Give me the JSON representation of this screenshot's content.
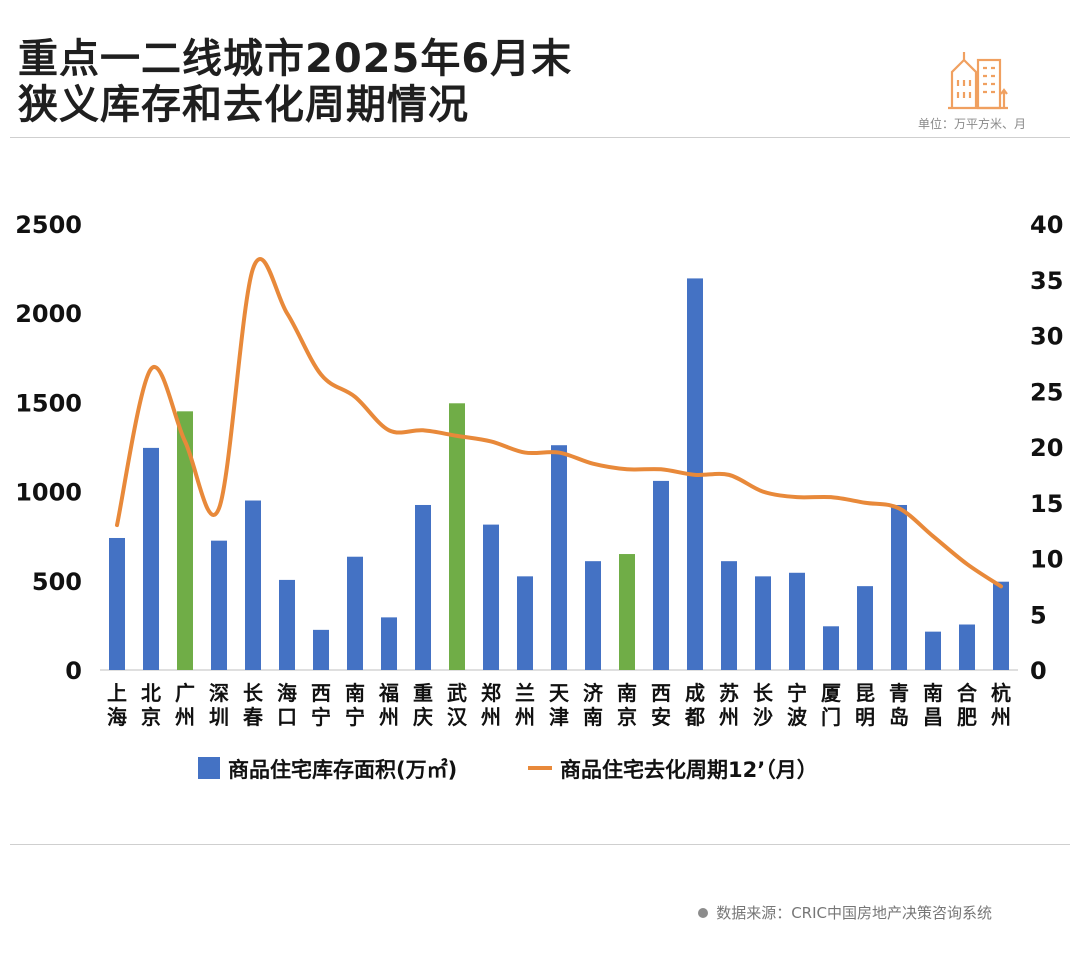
{
  "header": {
    "title_line1": "重点一二线城市2025年6月末",
    "title_line2": "狭义库存和去化周期情况",
    "unit_note": "单位：万平方米、月"
  },
  "footer": {
    "source": "数据来源：CRIC中国房地产决策咨询系统"
  },
  "colors": {
    "bar": "#4472C4",
    "bar_highlight": "#70AD47",
    "line": "#E8893A",
    "icon": "#F0A060"
  },
  "chart_data": {
    "type": "bar",
    "categories": [
      "上海",
      "北京",
      "广州",
      "深圳",
      "长春",
      "海口",
      "西宁",
      "南宁",
      "福州",
      "重庆",
      "武汉",
      "郑州",
      "兰州",
      "天津",
      "济南",
      "南京",
      "西安",
      "成都",
      "苏州",
      "长沙",
      "宁波",
      "厦门",
      "昆明",
      "青岛",
      "南昌",
      "合肥",
      "杭州"
    ],
    "highlight_categories": [
      "广州",
      "武汉",
      "南京"
    ],
    "series": [
      {
        "name": "商品住宅库存面积(万㎡)",
        "type": "bar",
        "axis": "left",
        "values": [
          740,
          1245,
          1450,
          725,
          950,
          505,
          225,
          635,
          295,
          925,
          1495,
          815,
          525,
          1260,
          610,
          650,
          1060,
          2195,
          610,
          525,
          545,
          245,
          470,
          925,
          215,
          255,
          495
        ]
      },
      {
        "name": "商品住宅去化周期12’（月）",
        "type": "line",
        "axis": "right",
        "values": [
          13,
          27,
          20.5,
          14.5,
          36,
          32,
          26.5,
          24.5,
          21.5,
          21.5,
          21,
          20.5,
          19.5,
          19.5,
          18.5,
          18,
          18,
          17.5,
          17.5,
          16,
          15.5,
          15.5,
          15,
          14.5,
          12,
          9.5,
          7.5
        ]
      }
    ],
    "y_left": {
      "min": 0,
      "max": 2500,
      "ticks": [
        "0",
        "500",
        "1000",
        "1500",
        "2000",
        "2500"
      ]
    },
    "y_right": {
      "min": 0,
      "max": 40,
      "ticks": [
        "0",
        "5",
        "10",
        "15",
        "20",
        "25",
        "30",
        "35",
        "40"
      ]
    },
    "grid": false,
    "legend_position": "bottom"
  }
}
